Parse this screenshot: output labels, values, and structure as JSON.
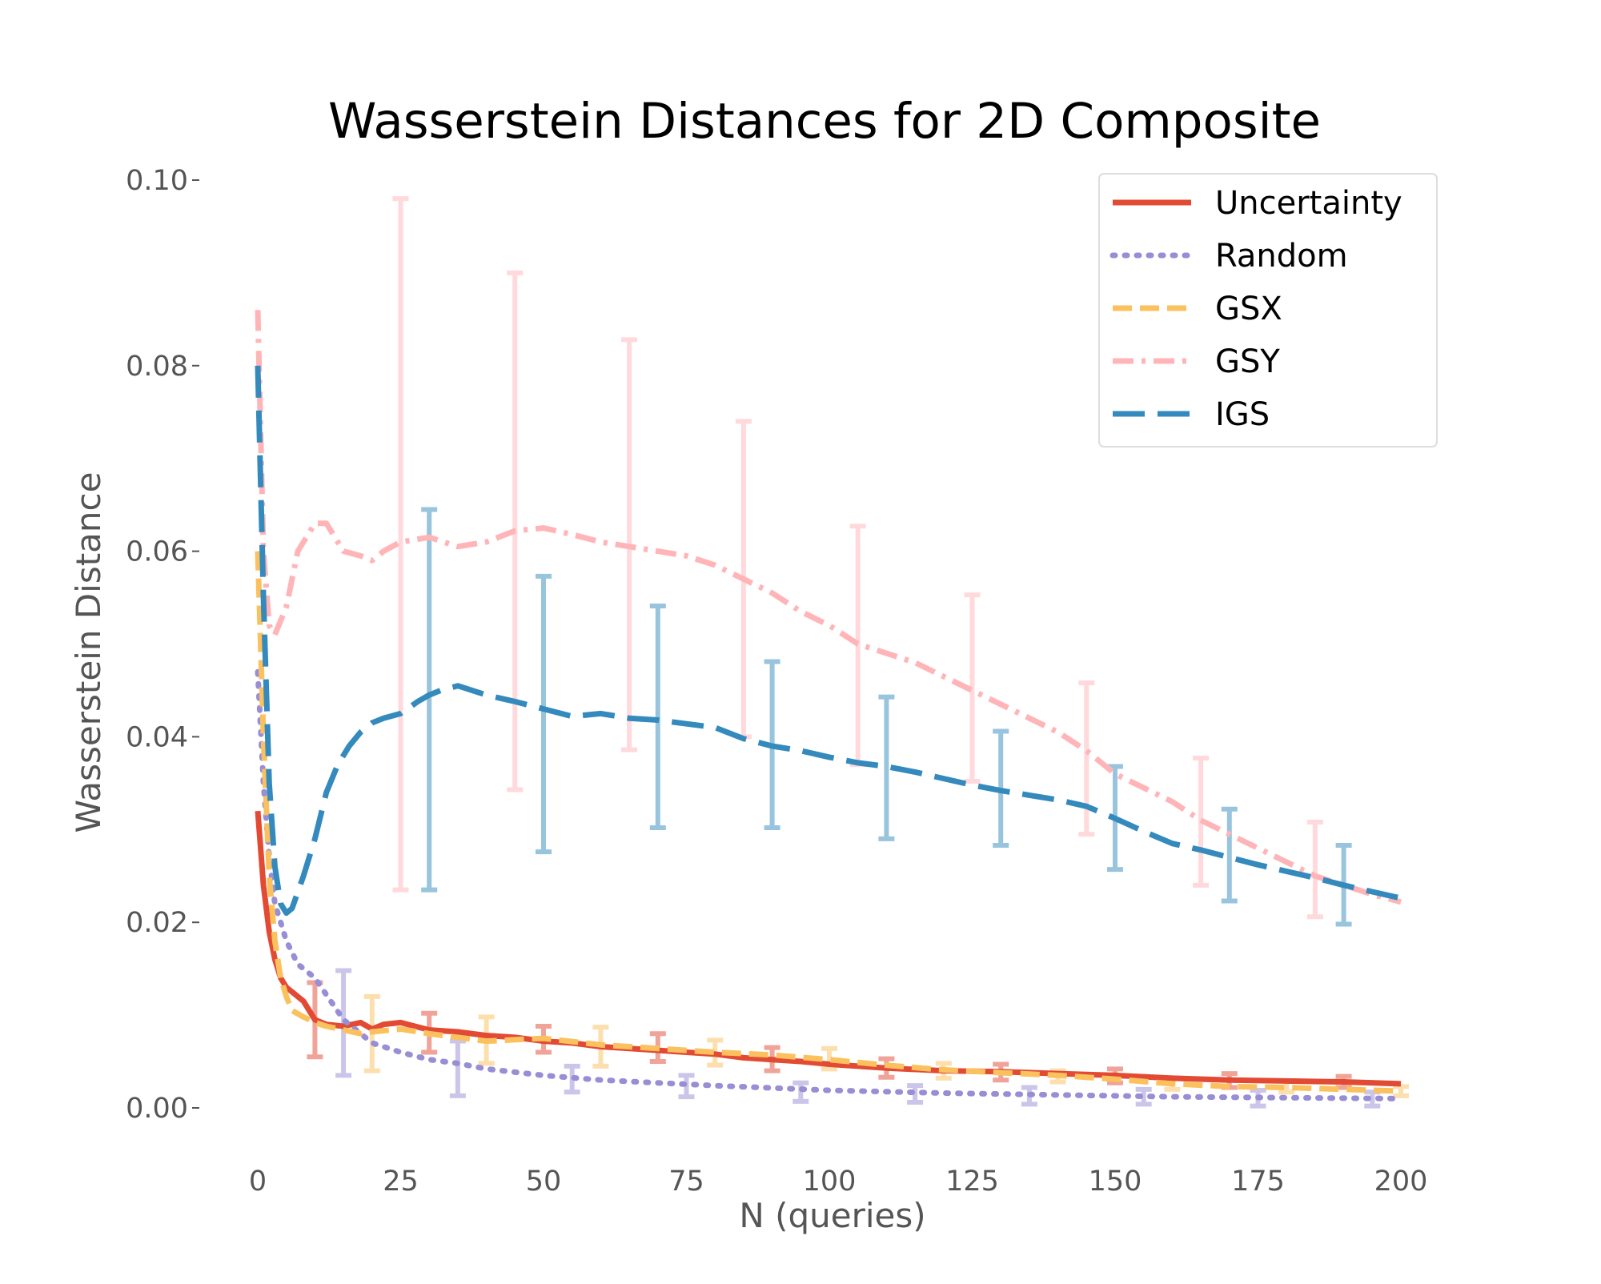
{
  "chart_data": {
    "type": "line",
    "title": "Wasserstein Distances for 2D Composite",
    "xlabel": "N (queries)",
    "ylabel": "Wasserstein Distance",
    "xlim": [
      0,
      200
    ],
    "ylim": [
      0.0,
      0.1
    ],
    "xticks": [
      "0",
      "25",
      "50",
      "75",
      "100",
      "125",
      "150",
      "175",
      "200"
    ],
    "yticks": [
      "0.00",
      "0.02",
      "0.04",
      "0.06",
      "0.08",
      "0.10"
    ],
    "grid": false,
    "legend_position": "top-right",
    "series": [
      {
        "name": "Uncertainty",
        "color": "#E24A33",
        "dash": "solid",
        "x": [
          0,
          1,
          2,
          3,
          4,
          5,
          6,
          8,
          10,
          12,
          15,
          18,
          20,
          22,
          25,
          30,
          35,
          40,
          45,
          50,
          55,
          60,
          65,
          70,
          75,
          80,
          85,
          90,
          95,
          100,
          110,
          120,
          130,
          140,
          150,
          160,
          170,
          180,
          190,
          200
        ],
        "y": [
          0.032,
          0.024,
          0.019,
          0.016,
          0.014,
          0.013,
          0.0125,
          0.0115,
          0.0095,
          0.009,
          0.0088,
          0.0092,
          0.0085,
          0.009,
          0.0092,
          0.0084,
          0.0082,
          0.0078,
          0.0076,
          0.0072,
          0.007,
          0.0066,
          0.0064,
          0.0062,
          0.006,
          0.0058,
          0.0054,
          0.0052,
          0.005,
          0.0047,
          0.0043,
          0.004,
          0.0039,
          0.0037,
          0.0035,
          0.0032,
          0.003,
          0.0029,
          0.0028,
          0.0026
        ],
        "error_bars": [
          {
            "x": 10,
            "low": 0.0055,
            "high": 0.0135
          },
          {
            "x": 30,
            "low": 0.006,
            "high": 0.0102
          },
          {
            "x": 50,
            "low": 0.006,
            "high": 0.0088
          },
          {
            "x": 70,
            "low": 0.005,
            "high": 0.008
          },
          {
            "x": 90,
            "low": 0.004,
            "high": 0.0065
          },
          {
            "x": 110,
            "low": 0.0033,
            "high": 0.0053
          },
          {
            "x": 130,
            "low": 0.003,
            "high": 0.0047
          },
          {
            "x": 150,
            "low": 0.0027,
            "high": 0.0042
          },
          {
            "x": 170,
            "low": 0.0022,
            "high": 0.0037
          },
          {
            "x": 190,
            "low": 0.0022,
            "high": 0.0034
          }
        ]
      },
      {
        "name": "Random",
        "color": "#988ED5",
        "dash": "dotted",
        "x": [
          0,
          1,
          2,
          3,
          4,
          5,
          7,
          10,
          15,
          20,
          25,
          30,
          35,
          40,
          50,
          60,
          70,
          80,
          100,
          120,
          140,
          160,
          180,
          200
        ],
        "y": [
          0.047,
          0.035,
          0.027,
          0.022,
          0.02,
          0.018,
          0.0155,
          0.014,
          0.0095,
          0.007,
          0.006,
          0.0052,
          0.0048,
          0.0042,
          0.0035,
          0.003,
          0.0027,
          0.0024,
          0.0019,
          0.0016,
          0.0014,
          0.0012,
          0.0011,
          0.001
        ],
        "error_bars": [
          {
            "x": 15,
            "low": 0.0035,
            "high": 0.0148
          },
          {
            "x": 35,
            "low": 0.0013,
            "high": 0.0072
          },
          {
            "x": 55,
            "low": 0.0017,
            "high": 0.0045
          },
          {
            "x": 75,
            "low": 0.0012,
            "high": 0.0035
          },
          {
            "x": 95,
            "low": 0.0007,
            "high": 0.0027
          },
          {
            "x": 115,
            "low": 0.0006,
            "high": 0.0024
          },
          {
            "x": 135,
            "low": 0.0004,
            "high": 0.0022
          },
          {
            "x": 155,
            "low": 0.0004,
            "high": 0.002
          },
          {
            "x": 175,
            "low": 0.0002,
            "high": 0.0019
          },
          {
            "x": 195,
            "low": 0.0002,
            "high": 0.0017
          }
        ]
      },
      {
        "name": "GSX",
        "color": "#FBC15E",
        "dash": "dashed",
        "x": [
          0,
          1,
          2,
          3,
          4,
          5,
          6,
          8,
          10,
          12,
          15,
          18,
          20,
          25,
          30,
          40,
          50,
          60,
          70,
          80,
          90,
          100,
          110,
          120,
          130,
          140,
          150,
          160,
          170,
          180,
          190,
          200
        ],
        "y": [
          0.06,
          0.04,
          0.025,
          0.018,
          0.014,
          0.012,
          0.0105,
          0.0098,
          0.0092,
          0.0088,
          0.0084,
          0.008,
          0.0082,
          0.0085,
          0.008,
          0.0072,
          0.0075,
          0.0068,
          0.0064,
          0.006,
          0.0057,
          0.0052,
          0.0046,
          0.0041,
          0.0038,
          0.0035,
          0.0031,
          0.0026,
          0.0023,
          0.0022,
          0.002,
          0.0018
        ],
        "error_bars": [
          {
            "x": 20,
            "low": 0.004,
            "high": 0.012
          },
          {
            "x": 40,
            "low": 0.0048,
            "high": 0.0098
          },
          {
            "x": 60,
            "low": 0.0045,
            "high": 0.0087
          },
          {
            "x": 80,
            "low": 0.0046,
            "high": 0.0073
          },
          {
            "x": 100,
            "low": 0.0042,
            "high": 0.0064
          },
          {
            "x": 120,
            "low": 0.0032,
            "high": 0.0048
          },
          {
            "x": 140,
            "low": 0.0028,
            "high": 0.004
          },
          {
            "x": 160,
            "low": 0.002,
            "high": 0.0032
          },
          {
            "x": 180,
            "low": 0.0017,
            "high": 0.0029
          },
          {
            "x": 200,
            "low": 0.0013,
            "high": 0.0023
          }
        ]
      },
      {
        "name": "GSY",
        "color": "#FFB5B8",
        "dash": "dashdot",
        "x": [
          0,
          1,
          2,
          3,
          5,
          7,
          9,
          10,
          12,
          15,
          18,
          20,
          22,
          25,
          30,
          35,
          40,
          45,
          50,
          55,
          60,
          65,
          70,
          75,
          80,
          85,
          90,
          95,
          100,
          105,
          110,
          115,
          120,
          125,
          130,
          135,
          140,
          145,
          150,
          155,
          160,
          165,
          170,
          175,
          180,
          185,
          190,
          195,
          200
        ],
        "y": [
          0.086,
          0.06,
          0.052,
          0.051,
          0.054,
          0.06,
          0.062,
          0.063,
          0.063,
          0.06,
          0.0595,
          0.059,
          0.06,
          0.061,
          0.0615,
          0.0605,
          0.061,
          0.0622,
          0.0625,
          0.0618,
          0.061,
          0.0605,
          0.06,
          0.0595,
          0.0585,
          0.057,
          0.0555,
          0.0535,
          0.052,
          0.05,
          0.049,
          0.048,
          0.0465,
          0.045,
          0.0435,
          0.042,
          0.0405,
          0.0385,
          0.036,
          0.0345,
          0.033,
          0.031,
          0.0295,
          0.028,
          0.0265,
          0.025,
          0.024,
          0.023,
          0.0222
        ],
        "error_bars": [
          {
            "x": 25,
            "low": 0.0235,
            "high": 0.098
          },
          {
            "x": 45,
            "low": 0.0343,
            "high": 0.09
          },
          {
            "x": 65,
            "low": 0.0386,
            "high": 0.0828
          },
          {
            "x": 85,
            "low": 0.04,
            "high": 0.074
          },
          {
            "x": 105,
            "low": 0.037,
            "high": 0.0627
          },
          {
            "x": 125,
            "low": 0.0352,
            "high": 0.0553
          },
          {
            "x": 145,
            "low": 0.0295,
            "high": 0.0458
          },
          {
            "x": 165,
            "low": 0.024,
            "high": 0.0377
          },
          {
            "x": 185,
            "low": 0.0206,
            "high": 0.0308
          }
        ]
      },
      {
        "name": "IGS",
        "color": "#348ABD",
        "dash": "longdash",
        "x": [
          0,
          1,
          2,
          3,
          4,
          5,
          6,
          8,
          10,
          12,
          14,
          16,
          18,
          20,
          22,
          25,
          28,
          30,
          32,
          35,
          40,
          45,
          50,
          55,
          60,
          65,
          70,
          75,
          80,
          85,
          90,
          95,
          100,
          105,
          110,
          115,
          120,
          125,
          130,
          135,
          140,
          145,
          150,
          155,
          160,
          165,
          170,
          175,
          180,
          185,
          190,
          195,
          200
        ],
        "y": [
          0.08,
          0.055,
          0.035,
          0.026,
          0.022,
          0.021,
          0.0215,
          0.025,
          0.029,
          0.034,
          0.037,
          0.039,
          0.0405,
          0.0415,
          0.042,
          0.0425,
          0.0438,
          0.0445,
          0.045,
          0.0455,
          0.0445,
          0.0438,
          0.043,
          0.0422,
          0.0425,
          0.042,
          0.0418,
          0.0414,
          0.041,
          0.0398,
          0.039,
          0.0385,
          0.0378,
          0.0372,
          0.0368,
          0.0362,
          0.0355,
          0.0348,
          0.0342,
          0.0337,
          0.0332,
          0.0325,
          0.0312,
          0.0298,
          0.0285,
          0.0278,
          0.027,
          0.0262,
          0.0255,
          0.0248,
          0.024,
          0.0233,
          0.0226
        ],
        "error_bars": [
          {
            "x": 30,
            "low": 0.0235,
            "high": 0.0645
          },
          {
            "x": 50,
            "low": 0.0276,
            "high": 0.0573
          },
          {
            "x": 70,
            "low": 0.0302,
            "high": 0.0541
          },
          {
            "x": 90,
            "low": 0.0302,
            "high": 0.0481
          },
          {
            "x": 110,
            "low": 0.029,
            "high": 0.0443
          },
          {
            "x": 130,
            "low": 0.0283,
            "high": 0.0406
          },
          {
            "x": 150,
            "low": 0.0257,
            "high": 0.0368
          },
          {
            "x": 170,
            "low": 0.0223,
            "high": 0.0322
          },
          {
            "x": 190,
            "low": 0.0198,
            "high": 0.0283
          }
        ]
      }
    ]
  }
}
